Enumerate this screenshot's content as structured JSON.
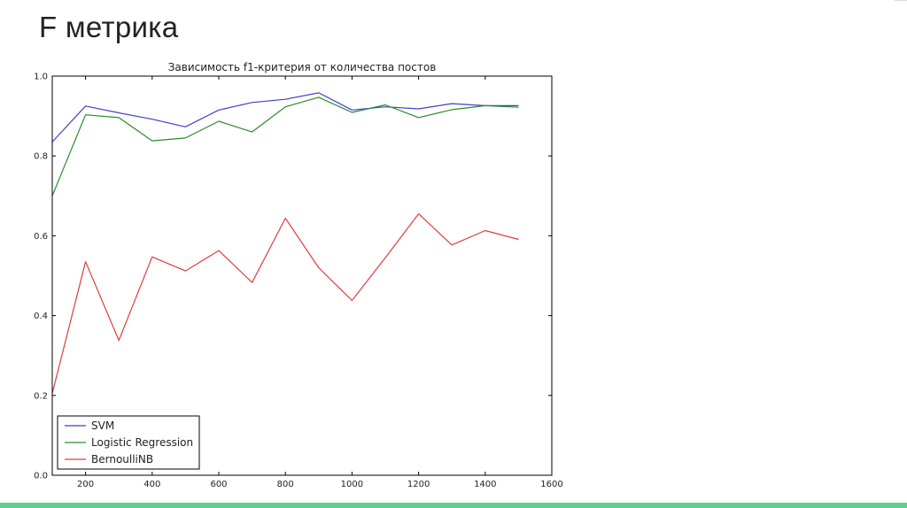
{
  "slide": {
    "title": "F метрика"
  },
  "colors": {
    "accent_bar": "#5fd08e",
    "svm": "#3f3fd0",
    "logistic": "#2a8a2a",
    "bernoulli": "#e03c3c"
  },
  "chart_data": {
    "type": "line",
    "title": "Зависимость f1-критерия от количества постов",
    "xlabel": "",
    "ylabel": "",
    "xlim": [
      100,
      1600
    ],
    "ylim": [
      0.0,
      1.0
    ],
    "xticks": [
      200,
      400,
      600,
      800,
      1000,
      1200,
      1400,
      1600
    ],
    "yticks": [
      0.0,
      0.2,
      0.4,
      0.6,
      0.8,
      1.0
    ],
    "xtick_labels": [
      "200",
      "400",
      "600",
      "800",
      "1000",
      "1200",
      "1400",
      "1600"
    ],
    "ytick_labels": [
      "0.0",
      "0.2",
      "0.4",
      "0.6",
      "0.8",
      "1.0"
    ],
    "grid": false,
    "legend_position": "bottom-left",
    "x": [
      100,
      200,
      300,
      400,
      500,
      600,
      700,
      800,
      900,
      1000,
      1100,
      1200,
      1300,
      1400,
      1500
    ],
    "series": [
      {
        "name": "SVM",
        "color": "#3f3fd0",
        "values": [
          0.835,
          0.925,
          0.908,
          0.892,
          0.873,
          0.915,
          0.934,
          0.942,
          0.958,
          0.915,
          0.923,
          0.918,
          0.931,
          0.926,
          0.926
        ]
      },
      {
        "name": "Logistic Regression",
        "color": "#2a8a2a",
        "values": [
          0.7,
          0.903,
          0.896,
          0.838,
          0.845,
          0.887,
          0.86,
          0.923,
          0.947,
          0.909,
          0.928,
          0.896,
          0.916,
          0.926,
          0.922
        ]
      },
      {
        "name": "BernoulliNB",
        "color": "#e03c3c",
        "values": [
          0.205,
          0.535,
          0.338,
          0.547,
          0.512,
          0.563,
          0.483,
          0.644,
          0.52,
          0.438,
          0.545,
          0.655,
          0.577,
          0.613,
          0.591
        ]
      }
    ]
  }
}
